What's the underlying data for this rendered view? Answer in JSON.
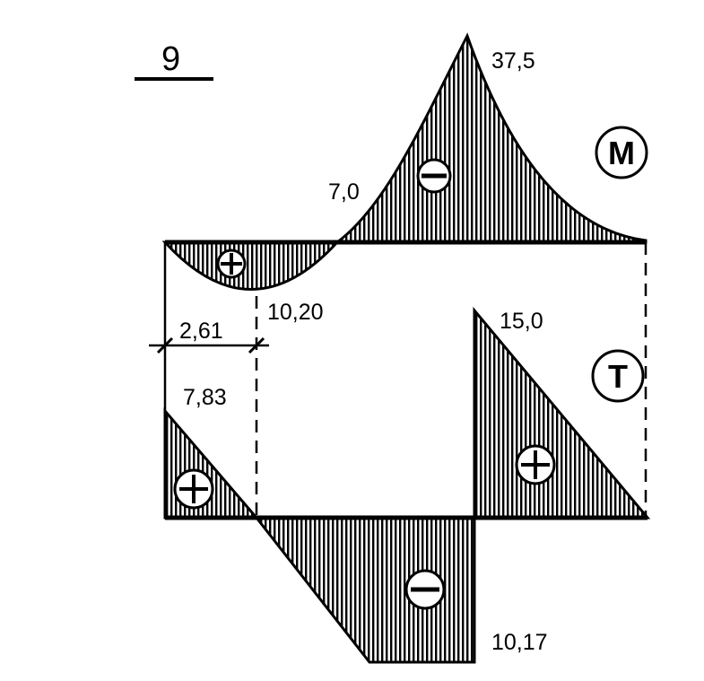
{
  "figure_number": "9",
  "moment_diagram": {
    "symbol": "M",
    "labels": {
      "peak": "37,5",
      "inflection": "7,0",
      "sag_max": "10,20"
    },
    "signs": {
      "sag": "+",
      "hog": "−"
    }
  },
  "shear_diagram": {
    "symbol": "T",
    "labels": {
      "left_top": "7,83",
      "right_top": "15,0",
      "bottom": "10,17",
      "dimension": "2,61"
    },
    "signs": {
      "left": "+",
      "right": "+",
      "bottom": "−"
    }
  },
  "colors": {
    "ink": "#000000",
    "background": "#ffffff"
  }
}
